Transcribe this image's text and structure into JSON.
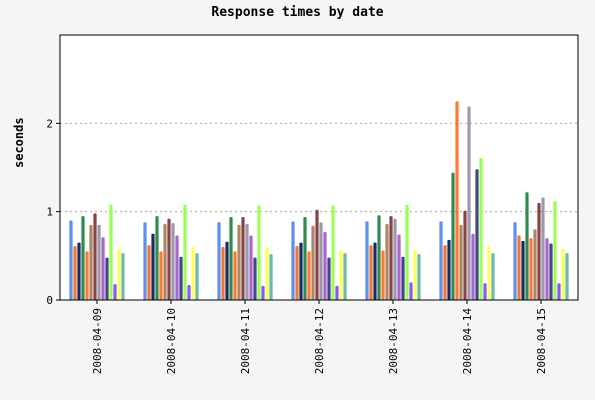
{
  "chart_data": {
    "type": "bar",
    "title": "Response times by date",
    "xlabel": "",
    "ylabel": "seconds",
    "ylim": [
      0,
      3
    ],
    "yticks": [
      0,
      1,
      2
    ],
    "grid": "horizontal dotted",
    "categories": [
      "2008-04-09",
      "2008-04-10",
      "2008-04-11",
      "2008-04-12",
      "2008-04-13",
      "2008-04-14",
      "2008-04-15"
    ],
    "series": [
      {
        "color": "#5c8fef",
        "values": [
          0.9,
          0.88,
          0.88,
          0.89,
          0.89,
          0.89,
          0.88
        ]
      },
      {
        "color": "#ee7733",
        "values": [
          0.61,
          0.62,
          0.6,
          0.61,
          0.62,
          0.62,
          0.73
        ]
      },
      {
        "color": "#1a2a66",
        "values": [
          0.65,
          0.75,
          0.66,
          0.65,
          0.65,
          0.68,
          0.67
        ]
      },
      {
        "color": "#2e8b50",
        "values": [
          0.95,
          0.95,
          0.94,
          0.94,
          0.96,
          1.44,
          1.22
        ]
      },
      {
        "color": "#ff7733",
        "values": [
          0.55,
          0.55,
          0.55,
          0.55,
          0.56,
          2.25,
          0.7
        ]
      },
      {
        "color": "#aa8866",
        "values": [
          0.85,
          0.86,
          0.85,
          0.84,
          0.86,
          0.85,
          0.8
        ]
      },
      {
        "color": "#884444",
        "values": [
          0.98,
          0.92,
          0.94,
          1.02,
          0.95,
          1.01,
          1.1
        ]
      },
      {
        "color": "#9999aa",
        "values": [
          0.85,
          0.87,
          0.86,
          0.88,
          0.92,
          2.19,
          1.16
        ]
      },
      {
        "color": "#aa66cc",
        "values": [
          0.71,
          0.73,
          0.73,
          0.77,
          0.74,
          0.75,
          0.7
        ]
      },
      {
        "color": "#444488",
        "values": [
          0.48,
          0.49,
          0.48,
          0.48,
          0.49,
          1.48,
          0.64
        ]
      },
      {
        "color": "#99ff55",
        "values": [
          1.08,
          1.08,
          1.07,
          1.07,
          1.08,
          1.61,
          1.12
        ]
      },
      {
        "color": "#8855ff",
        "values": [
          0.18,
          0.17,
          0.16,
          0.16,
          0.2,
          0.19,
          0.19
        ]
      },
      {
        "color": "#ffff55",
        "values": [
          0.58,
          0.6,
          0.6,
          0.56,
          0.57,
          0.61,
          0.58
        ]
      },
      {
        "color": "#66bbaa",
        "values": [
          0.53,
          0.53,
          0.52,
          0.53,
          0.52,
          0.53,
          0.53
        ]
      }
    ]
  }
}
